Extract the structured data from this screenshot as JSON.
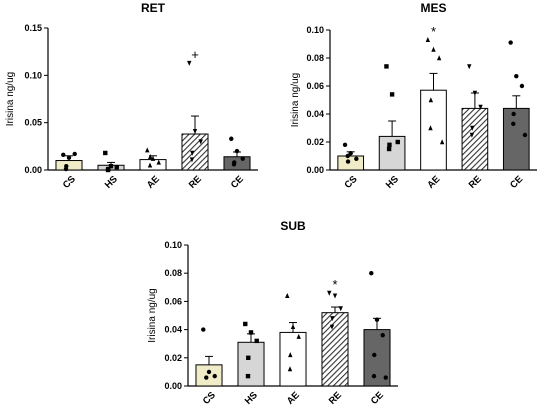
{
  "chart_data": [
    {
      "type": "bar",
      "title": "RET",
      "ylabel": "Irisina ng/ug",
      "xlabel": "",
      "categories": [
        "CS",
        "HS",
        "AE",
        "RE",
        "CE"
      ],
      "values": [
        0.01,
        0.005,
        0.011,
        0.038,
        0.014
      ],
      "sem": [
        0.005,
        0.003,
        0.004,
        0.019,
        0.005
      ],
      "points": [
        [
          0.016,
          0.013,
          0.017,
          0.004,
          0.001
        ],
        [
          0.018,
          0.004,
          0.003,
          0.001,
          0.0
        ],
        [
          0.021,
          0.012,
          0.008,
          0.014,
          0.005
        ],
        [
          0.113,
          0.041,
          0.03,
          0.018,
          0.011
        ],
        [
          0.033,
          0.02,
          0.012,
          0.008,
          0.006
        ]
      ],
      "markers": [
        "circle",
        "square",
        "triangle",
        "triangle-down",
        "circle"
      ],
      "annotations": [
        {
          "category": "RE",
          "text": "+"
        }
      ],
      "ylim": [
        0,
        0.15
      ],
      "yticks": [
        "0.00",
        "0.05",
        "0.10",
        "0.15"
      ]
    },
    {
      "type": "bar",
      "title": "MES",
      "ylabel": "Irisina ng/ug",
      "xlabel": "",
      "categories": [
        "CS",
        "HS",
        "AE",
        "RE",
        "CE"
      ],
      "values": [
        0.01,
        0.024,
        0.057,
        0.044,
        0.044
      ],
      "sem": [
        0.003,
        0.011,
        0.012,
        0.011,
        0.009
      ],
      "points": [
        [
          0.018,
          0.012,
          0.008,
          0.006,
          0.01
        ],
        [
          0.074,
          0.054,
          0.02,
          0.018,
          0.015
        ],
        [
          0.093,
          0.086,
          0.08,
          0.05,
          0.03,
          0.02
        ],
        [
          0.074,
          0.055,
          0.045,
          0.03,
          0.025
        ],
        [
          0.091,
          0.067,
          0.06,
          0.04,
          0.033,
          0.025
        ]
      ],
      "markers": [
        "circle",
        "square",
        "triangle",
        "triangle-down",
        "circle"
      ],
      "annotations": [
        {
          "category": "AE",
          "text": "*"
        }
      ],
      "ylim": [
        0,
        0.1
      ],
      "yticks": [
        "0.00",
        "0.02",
        "0.04",
        "0.06",
        "0.08",
        "0.10"
      ]
    },
    {
      "type": "bar",
      "title": "SUB",
      "ylabel": "Irisina ng/ug",
      "xlabel": "",
      "categories": [
        "CS",
        "HS",
        "AE",
        "RE",
        "CE"
      ],
      "values": [
        0.015,
        0.031,
        0.038,
        0.052,
        0.04
      ],
      "sem": [
        0.006,
        0.006,
        0.007,
        0.004,
        0.008
      ],
      "points": [
        [
          0.04,
          0.01,
          0.007,
          0.006
        ],
        [
          0.044,
          0.038,
          0.032,
          0.02,
          0.007
        ],
        [
          0.064,
          0.042,
          0.035,
          0.022,
          0.012
        ],
        [
          0.066,
          0.064,
          0.055,
          0.048,
          0.042
        ],
        [
          0.08,
          0.047,
          0.036,
          0.022,
          0.007,
          0.006
        ]
      ],
      "markers": [
        "circle",
        "square",
        "triangle",
        "triangle-down",
        "circle"
      ],
      "annotations": [
        {
          "category": "RE",
          "text": "*"
        }
      ],
      "ylim": [
        0,
        0.1
      ],
      "yticks": [
        "0.00",
        "0.02",
        "0.04",
        "0.06",
        "0.08",
        "0.10"
      ]
    }
  ],
  "colors": {
    "CS": "#f1ecc8",
    "HS": "#d6d6d6",
    "AE": "#ffffff",
    "RE": "hatched",
    "CE": "#666666",
    "axis": "#000000"
  }
}
